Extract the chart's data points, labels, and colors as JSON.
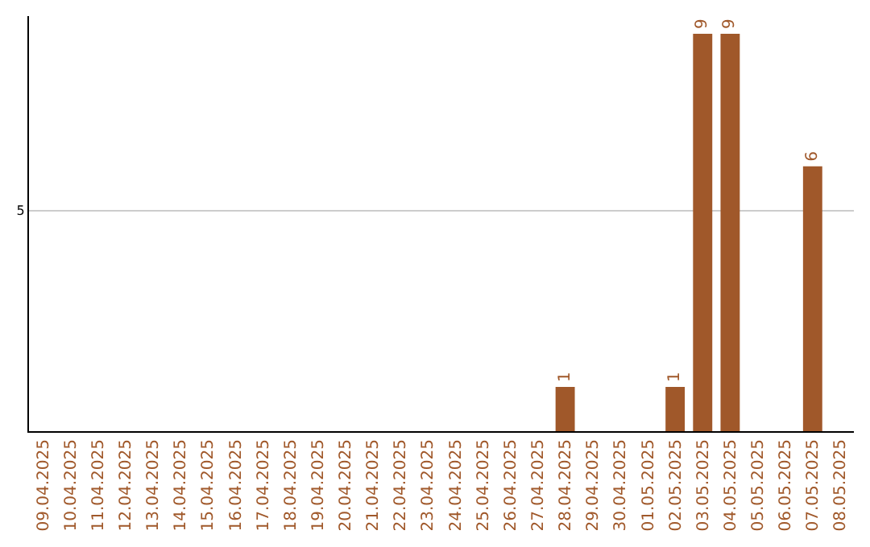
{
  "chart_data": {
    "type": "bar",
    "categories": [
      "09.04.2025",
      "10.04.2025",
      "11.04.2025",
      "12.04.2025",
      "13.04.2025",
      "14.04.2025",
      "15.04.2025",
      "16.04.2025",
      "17.04.2025",
      "18.04.2025",
      "19.04.2025",
      "20.04.2025",
      "21.04.2025",
      "22.04.2025",
      "23.04.2025",
      "24.04.2025",
      "25.04.2025",
      "26.04.2025",
      "27.04.2025",
      "28.04.2025",
      "29.04.2025",
      "30.04.2025",
      "01.05.2025",
      "02.05.2025",
      "03.05.2025",
      "04.05.2025",
      "05.05.2025",
      "06.05.2025",
      "07.05.2025",
      "08.05.2025"
    ],
    "values": [
      null,
      null,
      null,
      null,
      null,
      null,
      null,
      null,
      null,
      null,
      null,
      null,
      null,
      null,
      null,
      null,
      null,
      null,
      null,
      1,
      null,
      null,
      null,
      1,
      9,
      9,
      null,
      null,
      6,
      null
    ],
    "data_labels": true,
    "color": "#a0582a",
    "ylim": [
      0,
      9.4
    ],
    "yticks": [
      5
    ],
    "grid": "y"
  }
}
